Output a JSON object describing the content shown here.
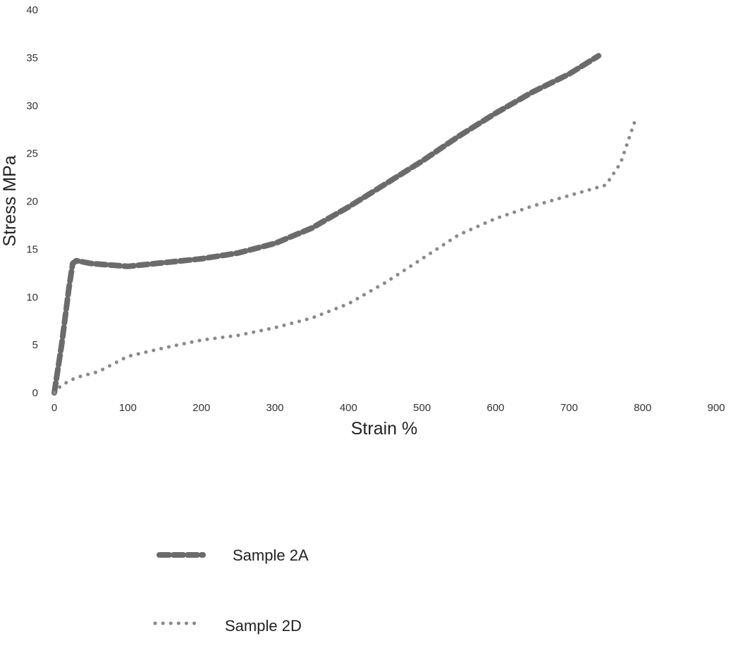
{
  "chart_data": {
    "type": "line",
    "title": "",
    "xlabel": "Strain %",
    "ylabel": "Stress MPa",
    "xlim": [
      0,
      900
    ],
    "ylim": [
      0,
      40
    ],
    "xticks": [
      0,
      100,
      200,
      300,
      400,
      500,
      600,
      700,
      800,
      900
    ],
    "yticks": [
      0,
      5,
      10,
      15,
      20,
      25,
      30,
      35,
      40
    ],
    "grid": false,
    "legend_position": "bottom-center",
    "series": [
      {
        "name": "Sample 2A",
        "style": "dashed",
        "color": "#6b6b6b",
        "x": [
          0,
          10,
          20,
          25,
          30,
          50,
          100,
          150,
          200,
          250,
          300,
          350,
          400,
          450,
          500,
          550,
          600,
          650,
          700,
          740
        ],
        "y": [
          0,
          5,
          11,
          13.5,
          13.8,
          13.5,
          13.2,
          13.6,
          14.0,
          14.6,
          15.6,
          17.2,
          19.4,
          21.8,
          24.2,
          26.8,
          29.2,
          31.4,
          33.3,
          35.2
        ]
      },
      {
        "name": "Sample 2D",
        "style": "dotted",
        "color": "#8a8a8a",
        "x": [
          0,
          10,
          30,
          60,
          100,
          150,
          200,
          250,
          300,
          350,
          400,
          450,
          500,
          550,
          600,
          650,
          700,
          750,
          770,
          790
        ],
        "y": [
          0,
          0.8,
          1.6,
          2.2,
          3.8,
          4.7,
          5.5,
          6.0,
          6.8,
          7.8,
          9.3,
          11.5,
          14.0,
          16.5,
          18.2,
          19.5,
          20.6,
          21.7,
          24.0,
          28.5
        ]
      }
    ]
  }
}
